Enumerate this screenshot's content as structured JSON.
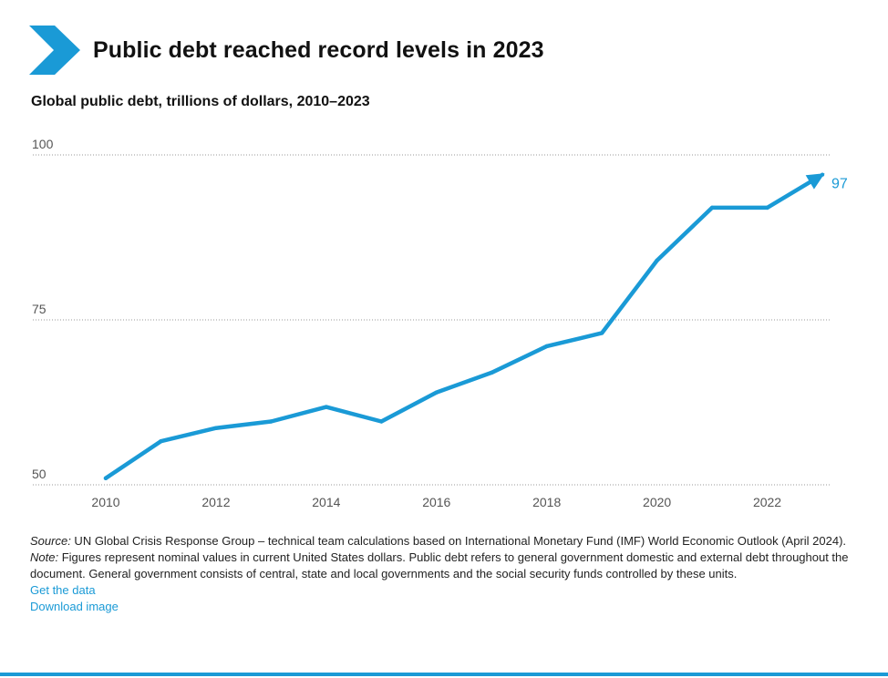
{
  "header": {
    "title": "Public debt reached record levels in 2023",
    "subtitle": "Global public debt, trillions of dollars, 2010–2023",
    "accent_color": "#1a9ad6",
    "icon": "chevron-right-icon"
  },
  "chart_data": {
    "type": "line",
    "title": "Public debt reached record levels in 2023",
    "subtitle": "Global public debt, trillions of dollars, 2010–2023",
    "xlabel": "",
    "ylabel": "",
    "x": [
      2010,
      2011,
      2012,
      2013,
      2014,
      2015,
      2016,
      2017,
      2018,
      2019,
      2020,
      2021,
      2022,
      2023
    ],
    "series": [
      {
        "values": [
          51,
          56.6,
          58.6,
          59.6,
          61.8,
          59.6,
          64,
          67,
          71,
          73,
          84,
          92,
          92,
          97
        ],
        "color": "#1a9ad6"
      }
    ],
    "xticks": [
      "2010",
      "2012",
      "2014",
      "2016",
      "2018",
      "2020",
      "2022"
    ],
    "yticks": [
      "50",
      "75",
      "100"
    ],
    "ylim": [
      50,
      100
    ],
    "xlim": [
      2010,
      2023
    ],
    "grid": "horizontal-dotted",
    "end_label": "97",
    "end_marker": "arrow"
  },
  "footnotes": {
    "source_label": "Source:",
    "source_text": " UN Global Crisis Response Group – technical team calculations based on International Monetary Fund (IMF) World Economic Outlook (April 2024).",
    "note_label": "Note:",
    "note_text": " Figures represent nominal values in current United States dollars. Public debt refers to general government domestic and external debt throughout the document. General government consists of central, state and local governments and the social security funds controlled by these units.",
    "get_data": "Get the data",
    "download_image": "Download image"
  }
}
